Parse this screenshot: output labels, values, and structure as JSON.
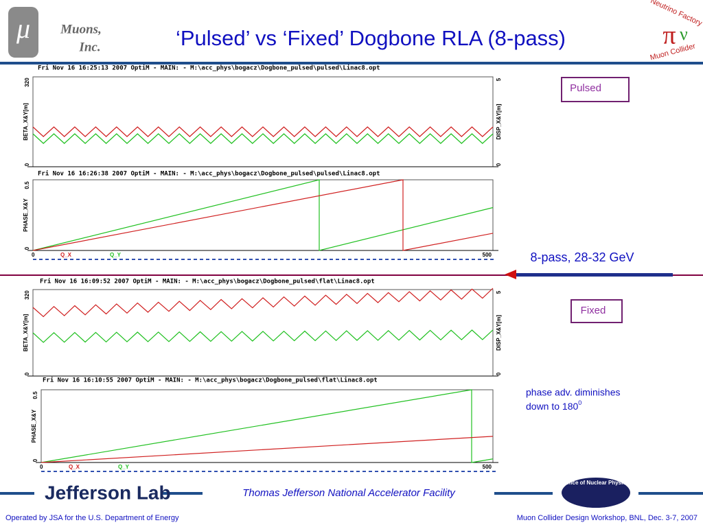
{
  "header": {
    "logo": "μ",
    "company": [
      "Muons,",
      "Inc."
    ],
    "title": "‘Pulsed’ vs ‘Fixed’ Dogbone RLA (8-pass)",
    "right_logo": [
      "Neutrino Factory",
      "Muon Collider"
    ]
  },
  "panels": [
    {
      "header": "Fri Nov 16 16:25:13 2007    OptiM - MAIN: - M:\\acc_phys\\bogacz\\Dogbone_pulsed\\pulsed\\Linac8.opt",
      "left_label": "BETA_X&Y[m]",
      "right_label": "DISP_X&Y[m]",
      "left_top": "320",
      "left_bottom": "0",
      "right_top": "5",
      "right_bottom": "0"
    },
    {
      "header": "Fri Nov 16 16:26:38 2007    OptiM - MAIN: - M:\\acc_phys\\bogacz\\Dogbone_pulsed\\pulsed\\Linac8.opt",
      "left_label": "PHASE_X&Y",
      "left_top": "0.5",
      "left_bottom": "0",
      "x_start": "0",
      "x_end": "500",
      "legend": [
        "Q_X",
        "Q_Y"
      ]
    },
    {
      "header": "Fri Nov 16 16:09:52 2007    OptiM - MAIN: - M:\\acc_phys\\bogacz\\Dogbone_pulsed\\flat\\Linac8.opt",
      "left_label": "BETA_X&Y[m]",
      "right_label": "DISP_X&Y[m]",
      "left_top": "320",
      "left_bottom": "0",
      "right_top": "5",
      "right_bottom": "0"
    },
    {
      "header": "Fri Nov 16 16:10:55 2007    OptiM - MAIN: - M:\\acc_phys\\bogacz\\Dogbone_pulsed\\flat\\Linac8.opt",
      "left_label": "PHASE_X&Y",
      "left_top": "0.5",
      "left_bottom": "0",
      "x_start": "0",
      "x_end": "500",
      "legend": [
        "Q_X",
        "Q_Y"
      ]
    }
  ],
  "labels": {
    "pulsed": "Pulsed",
    "fixed": "Fixed",
    "pass": "8-pass, 28-32 GeV",
    "note": [
      "phase adv. diminishes",
      "down to 180",
      "0"
    ]
  },
  "footer": {
    "lab": "Jefferson Lab",
    "facility": "Thomas Jefferson National Accelerator Facility",
    "office": "Office of Nuclear Physics",
    "left": "Operated by JSA for the U.S. Department of Energy",
    "right": "Muon Collider Design Workshop, BNL, Dec. 3-7, 2007"
  }
}
